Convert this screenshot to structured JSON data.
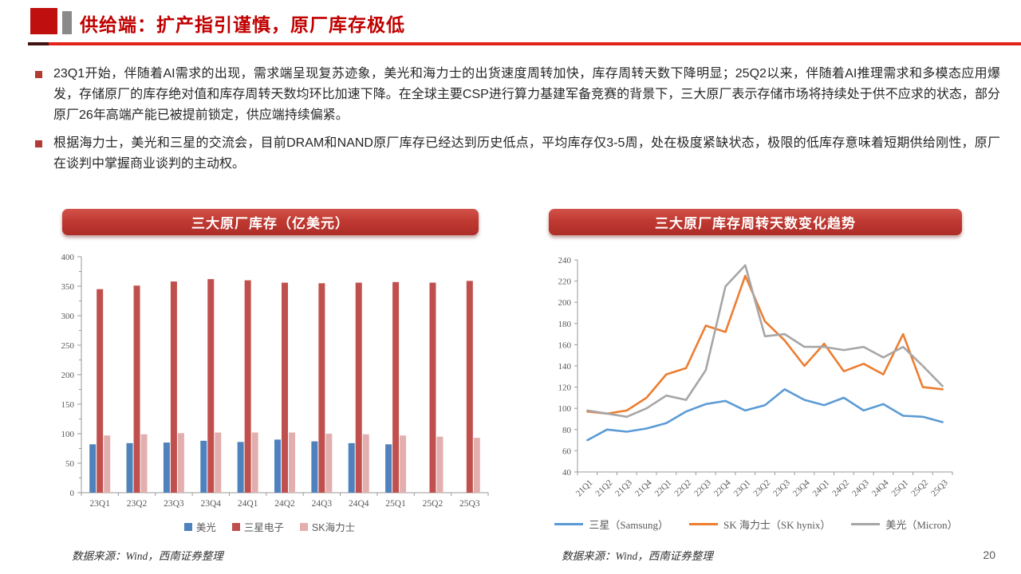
{
  "page": {
    "number": "20"
  },
  "header": {
    "title": "供给端：扩产指引谨慎，原厂库存极低"
  },
  "bullets": [
    {
      "text": "23Q1开始，伴随着AI需求的出现，需求端呈现复苏迹象，美光和海力士的出货速度周转加快，库存周转天数下降明显；25Q2以来，伴随着AI推理需求和多模态应用爆发，存储原厂的库存绝对值和库存周转天数均环比加速下降。在全球主要CSP进行算力基建军备竞赛的背景下，三大原厂表示存储市场将持续处于供不应求的状态，部分原厂26年高端产能已被提前锁定，供应端持续偏紧。"
    },
    {
      "text": "根据海力士，美光和三星的交流会，目前DRAM和NAND原厂库存已经达到历史低点，平均库存仅3-5周，处在极度紧缺状态，极限的低库存意味着短期供给刚性，原厂在谈判中掌握商业谈判的主动权。"
    }
  ],
  "charts": {
    "left": {
      "title": "三大原厂库存（亿美元）",
      "source": "数据来源：Wind，西南证券整理"
    },
    "right": {
      "title": "三大原厂库存周转天数变化趋势",
      "source": "数据来源：Wind，西南证券整理"
    }
  },
  "chart_data": [
    {
      "type": "bar",
      "title": "三大原厂库存（亿美元）",
      "categories": [
        "23Q1",
        "23Q2",
        "23Q3",
        "23Q4",
        "24Q1",
        "24Q2",
        "24Q3",
        "24Q4",
        "25Q1",
        "25Q2",
        "25Q3"
      ],
      "series": [
        {
          "name": "美光",
          "color": "#4F81BD",
          "values": [
            82,
            84,
            85,
            88,
            86,
            90,
            87,
            84,
            82,
            null,
            null
          ]
        },
        {
          "name": "三星电子",
          "color": "#C0504D",
          "values": [
            345,
            351,
            358,
            362,
            360,
            356,
            355,
            356,
            357,
            356,
            359
          ]
        },
        {
          "name": "SK海力士",
          "color": "#E3AFAE",
          "values": [
            97,
            99,
            101,
            102,
            102,
            102,
            100,
            99,
            97,
            95,
            93
          ]
        }
      ],
      "ylim": [
        0,
        400
      ],
      "ytick_step": 50,
      "ytick_minor": 25,
      "xlabel": "",
      "ylabel": "",
      "grid": false,
      "legend_position": "bottom"
    },
    {
      "type": "line",
      "title": "三大原厂库存周转天数变化趋势",
      "categories": [
        "21Q1",
        "21Q2",
        "21Q3",
        "21Q4",
        "22Q1",
        "22Q2",
        "22Q3",
        "22Q4",
        "23Q1",
        "23Q2",
        "23Q3",
        "23Q4",
        "24Q1",
        "24Q2",
        "24Q3",
        "24Q4",
        "25Q1",
        "25Q2",
        "25Q3"
      ],
      "series": [
        {
          "name": "三星（Samsung）",
          "color": "#5B9BD5",
          "values": [
            70,
            80,
            78,
            81,
            86,
            97,
            104,
            107,
            98,
            103,
            118,
            108,
            103,
            110,
            98,
            104,
            93,
            92,
            87
          ]
        },
        {
          "name": "SK 海力士（SK hynix）",
          "color": "#ED7D31",
          "values": [
            97,
            95,
            98,
            110,
            132,
            138,
            178,
            172,
            225,
            182,
            164,
            140,
            161,
            135,
            142,
            132,
            170,
            120,
            118
          ]
        },
        {
          "name": "美光（Micron）",
          "color": "#A6A6A6",
          "values": [
            98,
            95,
            92,
            100,
            112,
            108,
            136,
            215,
            235,
            168,
            170,
            158,
            158,
            155,
            158,
            148,
            158,
            140,
            121
          ]
        }
      ],
      "ylim": [
        40,
        240
      ],
      "ytick_step": 20,
      "xlabel": "",
      "ylabel": "",
      "grid": false,
      "legend_position": "bottom"
    }
  ]
}
